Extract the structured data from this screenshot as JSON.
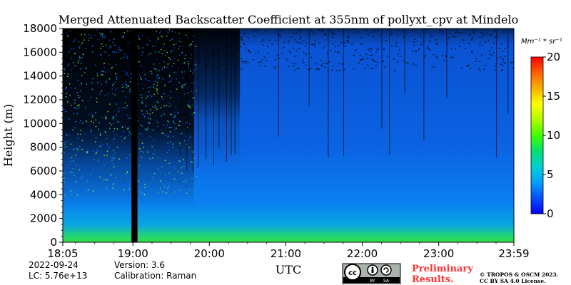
{
  "chart_data": {
    "type": "heatmap",
    "title": "Merged Attenuated Backscatter Coefficient at 355nm of pollyxt_cpv at Mindelo",
    "xlabel": "UTC",
    "ylabel": "Height (m)",
    "x_ticks": [
      "18:05",
      "19:00",
      "20:00",
      "21:00",
      "22:00",
      "23:00",
      "23:59"
    ],
    "x_tick_hours": [
      18.0833,
      19,
      20,
      21,
      22,
      23,
      23.9833
    ],
    "xlim": [
      18.0833,
      23.9833
    ],
    "y_ticks": [
      0,
      2000,
      4000,
      6000,
      8000,
      10000,
      12000,
      14000,
      16000,
      18000
    ],
    "ylim": [
      0,
      18000
    ],
    "colorbar": {
      "unit": "Mm⁻¹ * sr⁻¹",
      "ticks": [
        0,
        5,
        10,
        15,
        20
      ],
      "range": [
        0,
        20
      ],
      "colors": [
        "#0000ff",
        "#0050ff",
        "#00a0ff",
        "#00d0d0",
        "#00e070",
        "#40ff00",
        "#b0ff00",
        "#ffff00",
        "#ffb000",
        "#ff6000",
        "#ff0000"
      ]
    },
    "data_gap": {
      "start_hour": 19.0,
      "end_hour": 19.06
    },
    "signal_top_hour_ranges": [
      {
        "start_hour": 18.0833,
        "end_hour": 19.8,
        "level": "noisy-above-6000m"
      },
      {
        "start_hour": 19.8,
        "end_hour": 20.4,
        "level": "noisy-above-9000m"
      },
      {
        "start_hour": 20.4,
        "end_hour": 23.9833,
        "level": "clear-to-16000m"
      }
    ],
    "near_ground_level_m": 800
  },
  "footer": {
    "date": "2022-09-24",
    "lc": "LC: 5.76e+13",
    "version": "Version: 3.6",
    "calibration": "Calibration: Raman",
    "preliminary": "Preliminary",
    "results": "Results.",
    "copyright": "© TROPOS & OSCM 2023.",
    "license": "CC BY SA 4.0 License.",
    "cc_text": "cc",
    "by_text": "BY",
    "sa_text": "SA"
  }
}
